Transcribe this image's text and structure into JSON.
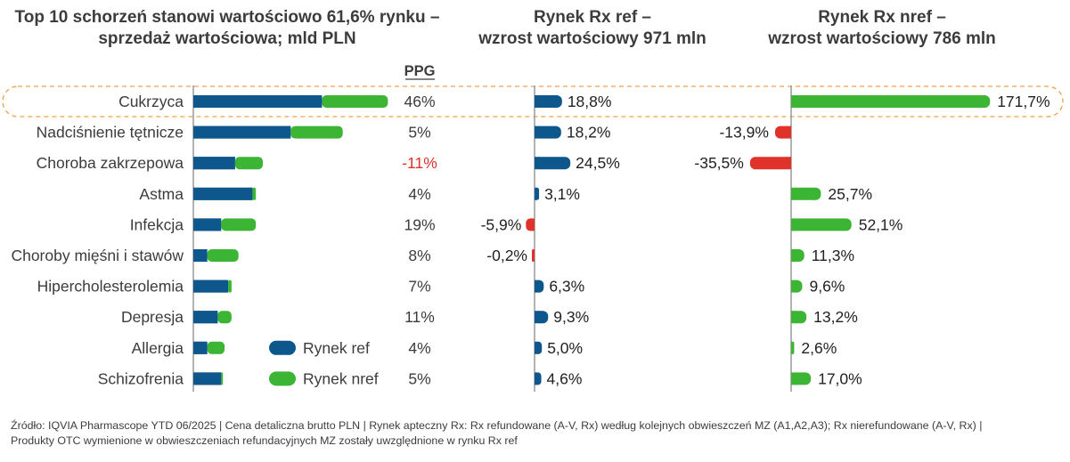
{
  "colors": {
    "ref": "#0d578c",
    "nref": "#3cb434",
    "negative": "#e0312b",
    "text": "#3c3c3c",
    "axis": "#9a9a9a",
    "highlight_border": "#f0a048"
  },
  "headers": {
    "left": [
      "Top 10 schorzeń stanowi wartościowo 61,6% rynku –",
      "sprzedaż wartościowa; mld PLN"
    ],
    "middle": [
      "Rynek Rx ref –",
      "wzrost wartościowy 971 mln"
    ],
    "right": [
      "Rynek Rx nref –",
      "wzrost wartościowy 786 mln"
    ]
  },
  "ppg_header": "PPG",
  "legend": [
    {
      "label": "Rynek ref",
      "color_key": "ref"
    },
    {
      "label": "Rynek nref",
      "color_key": "nref"
    }
  ],
  "highlighted_category": "Cukrzyca",
  "chart_data": [
    {
      "type": "bar",
      "orientation": "horizontal",
      "stacked": true,
      "categories": [
        "Cukrzyca",
        "Nadciśnienie tętnicze",
        "Choroba zakrzepowa",
        "Astma",
        "Infekcja",
        "Choroby mięśni i stawów",
        "Hipercholesterolemia",
        "Depresja",
        "Allergia",
        "Schizofrenia"
      ],
      "series": [
        {
          "name": "Rynek ref",
          "values": [
            3.7,
            2.8,
            1.2,
            1.7,
            0.8,
            0.4,
            1.0,
            0.7,
            0.4,
            0.8
          ]
        },
        {
          "name": "Rynek nref",
          "values": [
            1.9,
            1.5,
            0.8,
            0.1,
            1.0,
            0.9,
            0.1,
            0.4,
            0.5,
            0.05
          ]
        }
      ],
      "xlim": [
        0,
        6
      ],
      "annotations": {
        "ppg": [
          "46%",
          "5%",
          "-11%",
          "4%",
          "19%",
          "8%",
          "7%",
          "11%",
          "4%",
          "5%"
        ]
      }
    },
    {
      "type": "bar",
      "orientation": "horizontal",
      "categories": [
        "Cukrzyca",
        "Nadciśnienie tętnicze",
        "Choroba zakrzepowa",
        "Astma",
        "Infekcja",
        "Choroby mięśni i stawów",
        "Hipercholesterolemia",
        "Depresja",
        "Allergia",
        "Schizofrenia"
      ],
      "values": [
        18.8,
        18.2,
        24.5,
        3.1,
        -5.9,
        -0.2,
        6.3,
        9.3,
        5.0,
        4.6
      ],
      "labels": [
        "18,8%",
        "18,2%",
        "24,5%",
        "3,1%",
        "-5,9%",
        "-0,2%",
        "6,3%",
        "9,3%",
        "5,0%",
        "4,6%"
      ],
      "xlim": [
        -60,
        60
      ]
    },
    {
      "type": "bar",
      "orientation": "horizontal",
      "categories": [
        "Cukrzyca",
        "Nadciśnienie tętnicze",
        "Choroba zakrzepowa",
        "Astma",
        "Infekcja",
        "Choroby mięśni i stawów",
        "Hipercholesterolemia",
        "Depresja",
        "Allergia",
        "Schizofrenia"
      ],
      "values": [
        171.7,
        -13.9,
        -35.5,
        25.7,
        52.1,
        11.3,
        9.6,
        13.2,
        2.6,
        17.0
      ],
      "labels": [
        "171,7%",
        "-13,9%",
        "-35,5%",
        "25,7%",
        "52,1%",
        "11,3%",
        "9,6%",
        "13,2%",
        "2,6%",
        "17,0%"
      ],
      "xlim": [
        -170,
        180
      ]
    }
  ],
  "source": [
    "Źródło: IQVIA Pharmascope YTD 06/2025 | Cena detaliczna brutto PLN | Rynek apteczny Rx: Rx refundowane  (A-V, Rx) według kolejnych obwieszczeń MZ (A1,A2,A3); Rx nierefundowane (A-V, Rx) |",
    "Produkty OTC wymienione w obwieszczeniach refundacyjnych MZ zostały uwzględnione w rynku Rx ref"
  ]
}
